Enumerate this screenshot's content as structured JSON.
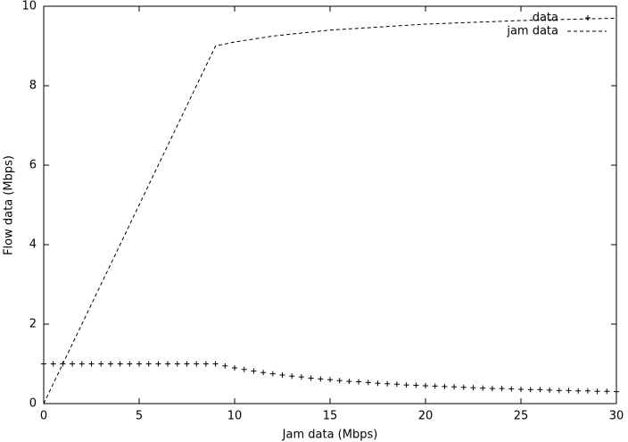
{
  "chart_data": {
    "type": "line",
    "xlabel": "Jam data (Mbps)",
    "ylabel": "Flow data (Mbps)",
    "xlim": [
      0,
      30
    ],
    "ylim": [
      0,
      10
    ],
    "xticks": [
      0,
      5,
      10,
      15,
      20,
      25,
      30
    ],
    "yticks": [
      0,
      2,
      4,
      6,
      8,
      10
    ],
    "legend": "top-right",
    "series": [
      {
        "name": "data",
        "color": "#000000",
        "marker": "plus",
        "x": [
          0,
          0.5,
          1,
          1.5,
          2,
          2.5,
          3,
          3.5,
          4,
          4.5,
          5,
          5.5,
          6,
          6.5,
          7,
          7.5,
          8,
          8.5,
          9,
          9.5,
          10,
          10.5,
          11,
          11.5,
          12,
          12.5,
          13,
          13.5,
          14,
          14.5,
          15,
          15.5,
          16,
          16.5,
          17,
          17.5,
          18,
          18.5,
          19,
          19.5,
          20,
          20.5,
          21,
          21.5,
          22,
          22.5,
          23,
          23.5,
          24,
          24.5,
          25,
          25.5,
          26,
          26.5,
          27,
          27.5,
          28,
          28.5,
          29,
          29.5,
          30
        ],
        "values": [
          1,
          1,
          1,
          1,
          1,
          1,
          1,
          1,
          1,
          1,
          1,
          1,
          1,
          1,
          1,
          1,
          1,
          1,
          1,
          0.95,
          0.9,
          0.86,
          0.82,
          0.78,
          0.75,
          0.72,
          0.69,
          0.67,
          0.64,
          0.62,
          0.6,
          0.58,
          0.56,
          0.55,
          0.53,
          0.51,
          0.5,
          0.49,
          0.47,
          0.46,
          0.45,
          0.44,
          0.43,
          0.42,
          0.41,
          0.4,
          0.39,
          0.38,
          0.38,
          0.37,
          0.36,
          0.35,
          0.35,
          0.34,
          0.33,
          0.33,
          0.32,
          0.32,
          0.31,
          0.31,
          0.3
        ]
      },
      {
        "name": "jam data",
        "color": "#000000",
        "marker": "dashed",
        "x": [
          0,
          9,
          10,
          12,
          15,
          20,
          25,
          30
        ],
        "values": [
          0,
          9,
          9.1,
          9.25,
          9.4,
          9.55,
          9.64,
          9.7
        ]
      }
    ]
  }
}
